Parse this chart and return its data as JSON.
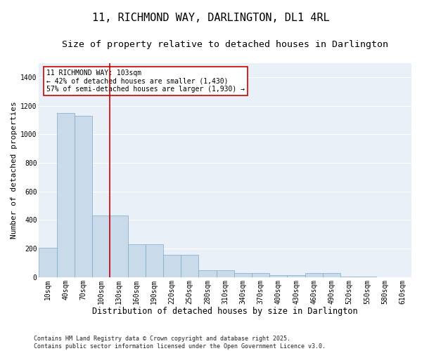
{
  "title": "11, RICHMOND WAY, DARLINGTON, DL1 4RL",
  "subtitle": "Size of property relative to detached houses in Darlington",
  "xlabel": "Distribution of detached houses by size in Darlington",
  "ylabel": "Number of detached properties",
  "categories": [
    "10sqm",
    "40sqm",
    "70sqm",
    "100sqm",
    "130sqm",
    "160sqm",
    "190sqm",
    "220sqm",
    "250sqm",
    "280sqm",
    "310sqm",
    "340sqm",
    "370sqm",
    "400sqm",
    "430sqm",
    "460sqm",
    "490sqm",
    "520sqm",
    "550sqm",
    "580sqm",
    "610sqm"
  ],
  "values": [
    205,
    1150,
    1130,
    430,
    430,
    230,
    230,
    155,
    155,
    50,
    50,
    30,
    30,
    15,
    15,
    30,
    30,
    5,
    5,
    0,
    0
  ],
  "bar_color": "#c9daea",
  "bar_edge_color": "#7aaac8",
  "background_color": "#eaf0f8",
  "vline_x_index": 3,
  "vline_color": "#cc0000",
  "annotation_text": "11 RICHMOND WAY: 103sqm\n← 42% of detached houses are smaller (1,430)\n57% of semi-detached houses are larger (1,930) →",
  "annotation_box_facecolor": "#ffffff",
  "annotation_box_edgecolor": "#cc0000",
  "ylim": [
    0,
    1500
  ],
  "yticks": [
    0,
    200,
    400,
    600,
    800,
    1000,
    1200,
    1400
  ],
  "footer": "Contains HM Land Registry data © Crown copyright and database right 2025.\nContains public sector information licensed under the Open Government Licence v3.0.",
  "title_fontsize": 11,
  "subtitle_fontsize": 9.5,
  "xlabel_fontsize": 8.5,
  "ylabel_fontsize": 8,
  "tick_fontsize": 7,
  "annotation_fontsize": 7,
  "footer_fontsize": 6
}
